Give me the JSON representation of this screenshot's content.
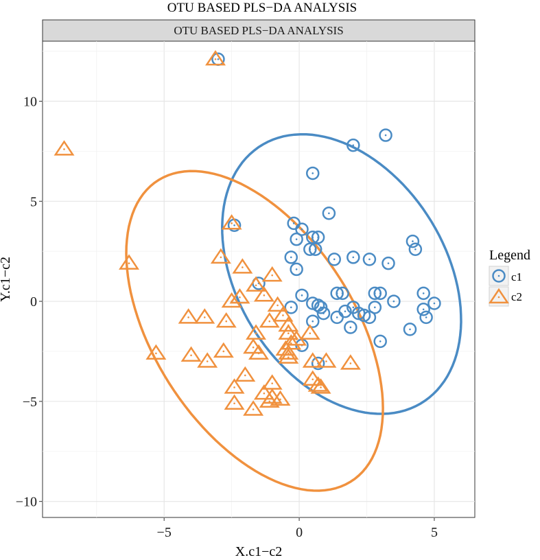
{
  "chart_data": {
    "type": "scatter",
    "title": "OTU BASED PLS−DA ANALYSIS",
    "facet_label": "OTU BASED PLS−DA ANALYSIS",
    "xlabel": "X.c1−c2",
    "ylabel": "Y.c1−c2",
    "xlim": [
      -9.5,
      6.5
    ],
    "ylim": [
      -10.8,
      13.0
    ],
    "x_ticks": [
      {
        "value": -5,
        "label": "−5"
      },
      {
        "value": 0,
        "label": "0"
      },
      {
        "value": 5,
        "label": "5"
      }
    ],
    "y_ticks": [
      {
        "value": -10,
        "label": "−10"
      },
      {
        "value": -5,
        "label": "−5"
      },
      {
        "value": 0,
        "label": "0"
      },
      {
        "value": 5,
        "label": "5"
      },
      {
        "value": 10,
        "label": "10"
      }
    ],
    "grid": true,
    "legend": {
      "title": "Legend",
      "placement": "right",
      "entries": [
        {
          "label": "c1",
          "shape": "circle",
          "color": "#4a8bc4"
        },
        {
          "label": "c2",
          "shape": "triangle",
          "color": "#f0913e"
        }
      ]
    },
    "series": [
      {
        "name": "c1",
        "shape": "circle",
        "color": "#4a8bc4",
        "points": [
          [
            -3.0,
            12.1
          ],
          [
            2.0,
            7.8
          ],
          [
            3.2,
            8.3
          ],
          [
            0.5,
            6.4
          ],
          [
            1.1,
            4.4
          ],
          [
            -2.4,
            3.8
          ],
          [
            -0.2,
            3.9
          ],
          [
            0.1,
            3.6
          ],
          [
            -0.1,
            3.1
          ],
          [
            0.5,
            3.2
          ],
          [
            0.7,
            3.2
          ],
          [
            0.4,
            2.6
          ],
          [
            0.6,
            2.6
          ],
          [
            -0.3,
            2.2
          ],
          [
            1.3,
            2.1
          ],
          [
            2.0,
            2.2
          ],
          [
            2.6,
            2.1
          ],
          [
            3.3,
            1.9
          ],
          [
            4.2,
            3.0
          ],
          [
            4.3,
            2.6
          ],
          [
            -0.1,
            1.6
          ],
          [
            -1.5,
            0.9
          ],
          [
            0.1,
            0.3
          ],
          [
            1.4,
            0.4
          ],
          [
            1.6,
            0.4
          ],
          [
            2.8,
            0.4
          ],
          [
            3.0,
            0.4
          ],
          [
            3.5,
            0.0
          ],
          [
            4.6,
            0.4
          ],
          [
            5.0,
            -0.1
          ],
          [
            -0.3,
            -0.3
          ],
          [
            0.5,
            -0.1
          ],
          [
            0.7,
            -0.2
          ],
          [
            0.8,
            -0.3
          ],
          [
            1.7,
            -0.5
          ],
          [
            2.0,
            -0.3
          ],
          [
            2.2,
            -0.6
          ],
          [
            2.4,
            -0.7
          ],
          [
            2.8,
            -0.3
          ],
          [
            4.6,
            -0.4
          ],
          [
            4.7,
            -0.8
          ],
          [
            0.5,
            -1.0
          ],
          [
            0.9,
            -0.6
          ],
          [
            1.4,
            -0.8
          ],
          [
            2.6,
            -0.8
          ],
          [
            1.9,
            -1.3
          ],
          [
            4.1,
            -1.4
          ],
          [
            3.0,
            -2.0
          ],
          [
            0.1,
            -2.2
          ],
          [
            0.7,
            -3.1
          ]
        ]
      },
      {
        "name": "c2",
        "shape": "triangle",
        "color": "#f0913e",
        "points": [
          [
            -3.1,
            12.1
          ],
          [
            -8.7,
            7.6
          ],
          [
            -2.5,
            3.9
          ],
          [
            -6.3,
            1.9
          ],
          [
            -2.9,
            2.2
          ],
          [
            -2.1,
            1.7
          ],
          [
            -1.0,
            1.3
          ],
          [
            -1.6,
            0.8
          ],
          [
            -1.3,
            0.3
          ],
          [
            -2.2,
            0.2
          ],
          [
            -2.5,
            0.0
          ],
          [
            -0.8,
            -0.2
          ],
          [
            -4.1,
            -0.8
          ],
          [
            -3.5,
            -0.8
          ],
          [
            -2.7,
            -1.0
          ],
          [
            -1.1,
            -1.0
          ],
          [
            -0.6,
            -0.7
          ],
          [
            -1.6,
            -1.6
          ],
          [
            -0.4,
            -1.2
          ],
          [
            -0.4,
            -1.6
          ],
          [
            0.4,
            -1.6
          ],
          [
            -0.1,
            -1.9
          ],
          [
            -0.3,
            -2.1
          ],
          [
            -0.5,
            -2.4
          ],
          [
            -5.3,
            -2.6
          ],
          [
            -4.0,
            -2.7
          ],
          [
            -3.4,
            -3.0
          ],
          [
            -2.8,
            -2.5
          ],
          [
            -1.7,
            -2.3
          ],
          [
            -1.5,
            -2.6
          ],
          [
            -0.4,
            -2.6
          ],
          [
            -0.4,
            -2.8
          ],
          [
            0.5,
            -3.0
          ],
          [
            1.0,
            -3.0
          ],
          [
            1.9,
            -3.1
          ],
          [
            -2.0,
            -3.7
          ],
          [
            -2.4,
            -4.3
          ],
          [
            -1.0,
            -4.1
          ],
          [
            0.5,
            -3.9
          ],
          [
            0.7,
            -4.2
          ],
          [
            -1.3,
            -4.6
          ],
          [
            -1.0,
            -4.8
          ],
          [
            -0.7,
            -4.9
          ],
          [
            -2.4,
            -5.1
          ],
          [
            -1.7,
            -5.4
          ],
          [
            -1.1,
            -5.0
          ],
          [
            0.8,
            -4.3
          ]
        ]
      }
    ],
    "ellipses": [
      {
        "series": "c1",
        "color": "#4a8bc4"
      },
      {
        "series": "c2",
        "color": "#f0913e"
      }
    ]
  }
}
